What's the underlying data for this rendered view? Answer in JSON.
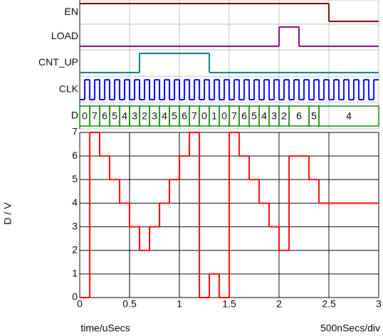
{
  "chart_data": {
    "type": "timing",
    "xlabel": "time/uSecs",
    "scale_label": "500nSecs/div",
    "xlim": [
      0,
      3
    ],
    "xticks": [
      0,
      0.5,
      1,
      1.5,
      2,
      2.5,
      3
    ],
    "signals": [
      {
        "name": "EN",
        "color": "#800000",
        "x": [
          0,
          2.5
        ],
        "values": [
          1,
          0
        ]
      },
      {
        "name": "LOAD",
        "color": "#800080",
        "x": [
          0,
          2.0,
          2.2
        ],
        "values": [
          0,
          1,
          0
        ]
      },
      {
        "name": "CNT_UP",
        "color": "#008080",
        "x": [
          0,
          0.6,
          1.3
        ],
        "values": [
          0,
          1,
          0
        ]
      },
      {
        "name": "CLK",
        "color": "#0000ff",
        "x": [
          0,
          0.05,
          0.1,
          0.15,
          0.2,
          0.25,
          0.3,
          0.35,
          0.4,
          0.45,
          0.5,
          0.55,
          0.6,
          0.65,
          0.7,
          0.75,
          0.8,
          0.85,
          0.9,
          0.95,
          1.0,
          1.05,
          1.1,
          1.15,
          1.2,
          1.25,
          1.3,
          1.35,
          1.4,
          1.45,
          1.5,
          1.55,
          1.6,
          1.65,
          1.7,
          1.75,
          1.8,
          1.85,
          1.9,
          1.95,
          2.0,
          2.05,
          2.1,
          2.15,
          2.2,
          2.25,
          2.3,
          2.35,
          2.4,
          2.45,
          2.5,
          2.55,
          2.6,
          2.65,
          2.7,
          2.75,
          2.8,
          2.85,
          2.9,
          2.95
        ],
        "values": [
          0,
          1,
          0,
          1,
          0,
          1,
          0,
          1,
          0,
          1,
          0,
          1,
          0,
          1,
          0,
          1,
          0,
          1,
          0,
          1,
          0,
          1,
          0,
          1,
          0,
          1,
          0,
          1,
          0,
          1,
          0,
          1,
          0,
          1,
          0,
          1,
          0,
          1,
          0,
          1,
          0,
          1,
          0,
          1,
          0,
          1,
          0,
          1,
          0,
          1,
          0,
          1,
          0,
          1,
          0,
          1,
          0,
          1,
          0,
          1
        ]
      }
    ],
    "bus": {
      "name": "D",
      "color": "#008000",
      "x": [
        0,
        0.1,
        0.2,
        0.3,
        0.4,
        0.5,
        0.6,
        0.7,
        0.8,
        0.9,
        1.0,
        1.1,
        1.2,
        1.3,
        1.4,
        1.5,
        1.6,
        1.7,
        1.8,
        1.9,
        2.0,
        2.1,
        2.3,
        2.4
      ],
      "values": [
        0,
        7,
        6,
        5,
        4,
        3,
        2,
        3,
        4,
        5,
        6,
        7,
        0,
        1,
        0,
        7,
        6,
        5,
        4,
        3,
        2,
        6,
        5,
        4
      ]
    },
    "analog": {
      "ylabel": "D / V",
      "color": "#ff0000",
      "ylim": [
        0,
        7
      ],
      "yticks": [
        0,
        1,
        2,
        3,
        4,
        5,
        6,
        7
      ],
      "x": [
        0,
        0.1,
        0.2,
        0.3,
        0.4,
        0.5,
        0.6,
        0.7,
        0.8,
        0.9,
        1.0,
        1.1,
        1.2,
        1.3,
        1.4,
        1.5,
        1.6,
        1.7,
        1.8,
        1.9,
        2.0,
        2.1,
        2.3,
        2.4
      ],
      "values": [
        0,
        7,
        6,
        5,
        4,
        3,
        2,
        3,
        4,
        5,
        6,
        7,
        0,
        1,
        0,
        7,
        6,
        5,
        4,
        3,
        2,
        6,
        5,
        4
      ]
    }
  }
}
